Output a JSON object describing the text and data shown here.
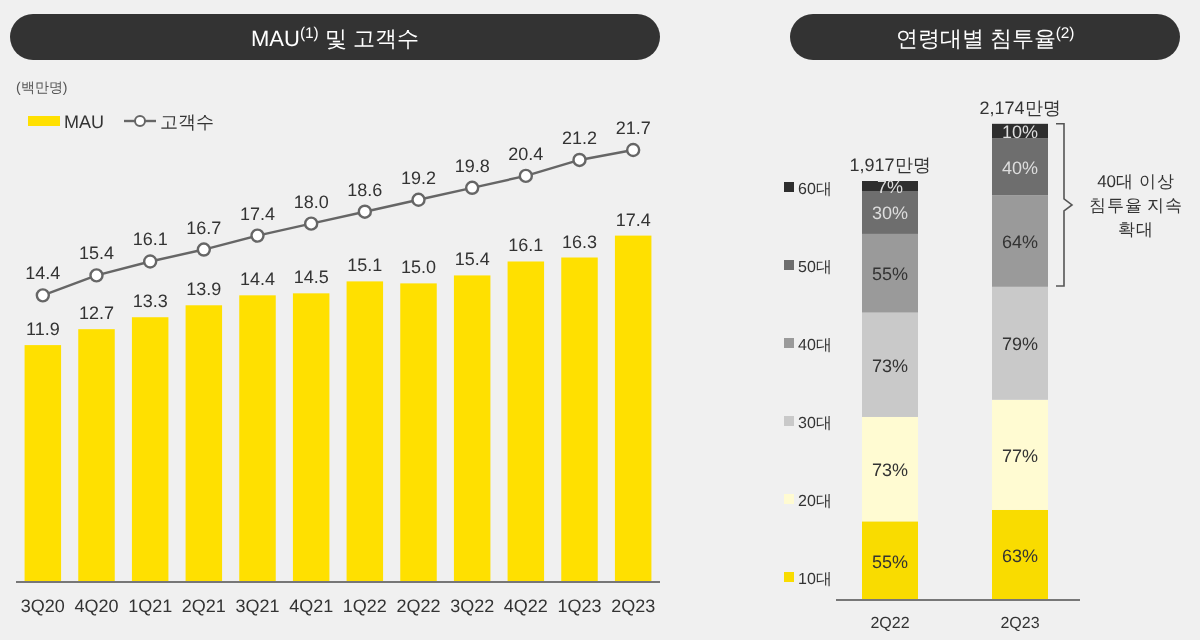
{
  "chart_data": [
    {
      "type": "bar",
      "title": "MAU$^{(1)}$ 및 고객수",
      "annotations": [
        "(백만명)"
      ],
      "categories": [
        "3Q20",
        "4Q20",
        "1Q21",
        "2Q21",
        "3Q21",
        "4Q21",
        "1Q22",
        "2Q22",
        "3Q22",
        "4Q22",
        "1Q23",
        "2Q23"
      ],
      "series": [
        {
          "name": "MAU",
          "color": "#ffe000",
          "values": [
            11.9,
            12.7,
            13.3,
            13.9,
            14.4,
            14.5,
            15.1,
            15.0,
            15.4,
            16.1,
            16.3,
            17.4
          ],
          "value_labels": [
            "11.9",
            "12.7",
            "13.3",
            "13.9",
            "14.4",
            "14.5",
            "15.1",
            "15.0",
            "15.4",
            "16.1",
            "16.3",
            "17.4"
          ]
        },
        {
          "name": "고객수",
          "type": "line",
          "color": "#666666",
          "marker": "circle",
          "values": [
            14.4,
            15.4,
            16.1,
            16.7,
            17.4,
            18.0,
            18.6,
            19.2,
            19.8,
            20.4,
            21.2,
            21.7
          ],
          "value_labels": [
            "14.4",
            "15.4",
            "16.1",
            "16.7",
            "17.4",
            "18.0",
            "18.6",
            "19.2",
            "19.8",
            "20.4",
            "21.2",
            "21.7"
          ]
        }
      ],
      "legend": "top left"
    },
    {
      "type": "bar",
      "stacked": true,
      "title": "연령대별 침투율$^{(2)}$",
      "categories": [
        "2Q22",
        "2Q23"
      ],
      "series": [
        {
          "name": "10대",
          "color": "#f9dc00",
          "values": [
            55,
            63
          ],
          "value_labels": [
            "55%",
            "63%"
          ]
        },
        {
          "name": "20대",
          "color": "#fffbd2",
          "values": [
            73,
            77
          ],
          "value_labels": [
            "73%",
            "77%"
          ]
        },
        {
          "name": "30대",
          "color": "#c9c9c9",
          "values": [
            73,
            79
          ],
          "value_labels": [
            "73%",
            "79%"
          ]
        },
        {
          "name": "40대",
          "color": "#9a9a9a",
          "values": [
            55,
            64
          ],
          "value_labels": [
            "55%",
            "64%"
          ]
        },
        {
          "name": "50대",
          "color": "#6e6e6e",
          "values": [
            30,
            40
          ],
          "value_labels": [
            "30%",
            "40%"
          ]
        },
        {
          "name": "60대",
          "color": "#2e2e2e",
          "values": [
            7,
            10
          ],
          "value_labels": [
            "7%",
            "10%"
          ]
        }
      ],
      "legend": "left",
      "annotations": [
        "1,917만명",
        "2,174만명",
        "40대 이상 침투율 지속 확대"
      ]
    }
  ]
}
